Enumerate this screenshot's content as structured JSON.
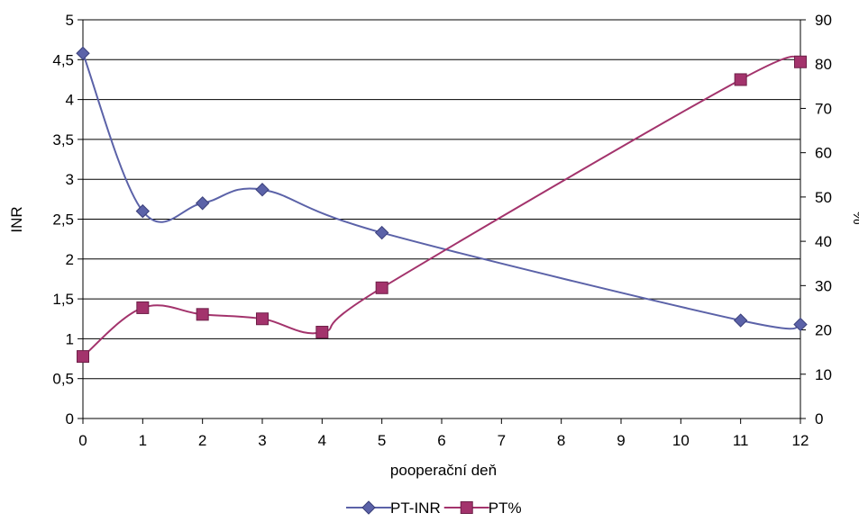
{
  "chart_data": {
    "type": "line",
    "title": "",
    "xlabel": "pooperační deň",
    "ylabel_left": "INR",
    "ylabel_right": "%",
    "x_ticks": [
      "0",
      "1",
      "2",
      "3",
      "4",
      "5",
      "6",
      "7",
      "8",
      "9",
      "10",
      "11",
      "12"
    ],
    "xlim": [
      0,
      12
    ],
    "y_left_ticks": [
      "0",
      "0,5",
      "1",
      "1,5",
      "2",
      "2,5",
      "3",
      "3,5",
      "4",
      "4,5",
      "5"
    ],
    "ylim_left": [
      0,
      5
    ],
    "y_right_ticks": [
      "0",
      "10",
      "20",
      "30",
      "40",
      "50",
      "60",
      "70",
      "80",
      "90"
    ],
    "ylim_right": [
      0,
      90
    ],
    "grid": "horizontal",
    "legend_position": "bottom",
    "series": [
      {
        "name": "PT-INR",
        "axis": "left",
        "color": "#5B62A8",
        "marker": "diamond",
        "x": [
          0,
          1,
          2,
          3,
          5,
          11,
          12
        ],
        "values": [
          4.58,
          2.6,
          2.7,
          2.87,
          2.33,
          1.23,
          1.18
        ]
      },
      {
        "name": "PT%",
        "axis": "right",
        "color": "#A3336C",
        "marker": "square",
        "x": [
          0,
          1,
          2,
          3,
          4,
          5,
          11,
          12
        ],
        "values": [
          14,
          25,
          23.5,
          22.5,
          19.5,
          29.5,
          76.5,
          80.5
        ]
      }
    ]
  }
}
